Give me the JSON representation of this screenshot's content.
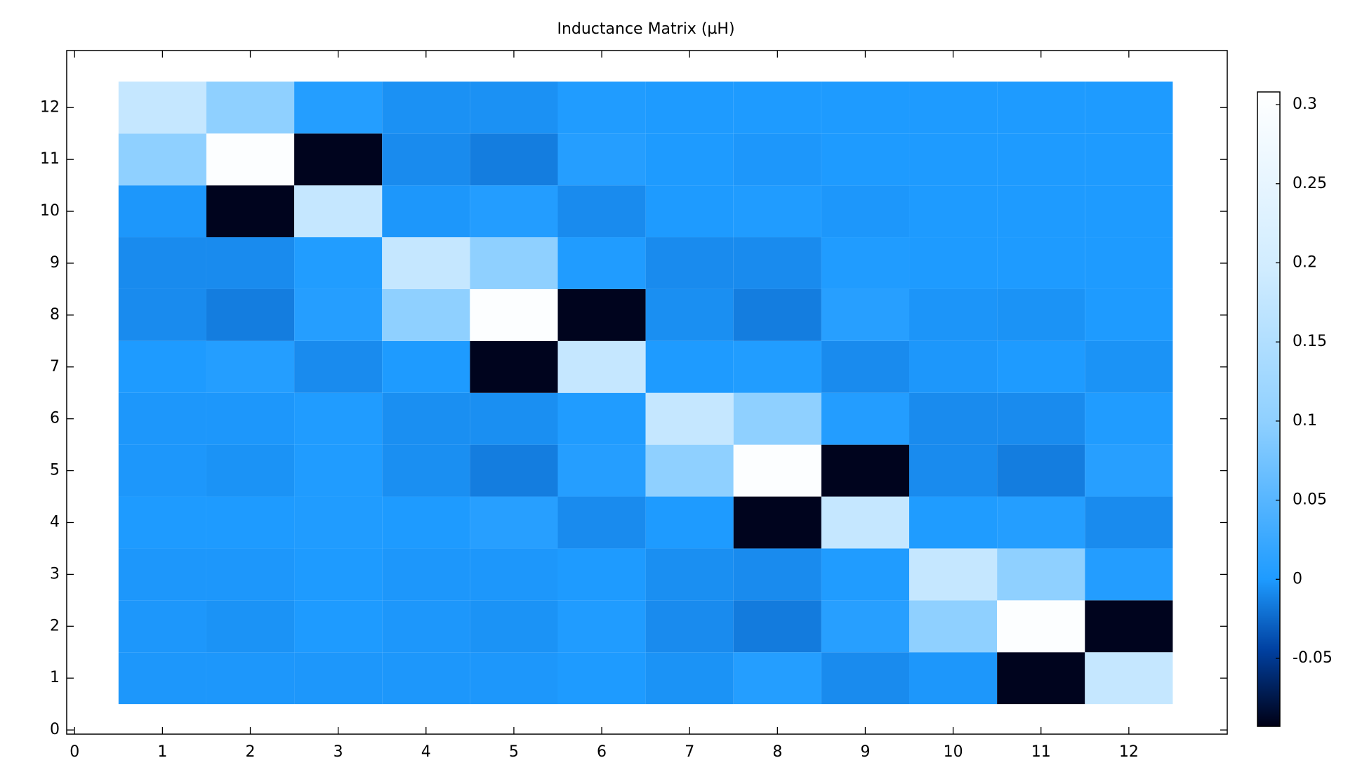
{
  "chart_data": {
    "type": "heatmap",
    "title": "Inductance Matrix (µH)",
    "x": [
      1,
      2,
      3,
      4,
      5,
      6,
      7,
      8,
      9,
      10,
      11,
      12
    ],
    "y": [
      1,
      2,
      3,
      4,
      5,
      6,
      7,
      8,
      9,
      10,
      11,
      12
    ],
    "z": [
      [
        -0.002,
        -0.002,
        -0.002,
        -0.002,
        -0.002,
        0,
        -0.004,
        0.005,
        -0.008,
        -0.002,
        -0.09,
        0.18
      ],
      [
        -0.002,
        -0.004,
        0,
        -0.002,
        -0.004,
        0.002,
        -0.008,
        -0.016,
        0.008,
        0.1,
        0.3,
        -0.09
      ],
      [
        -0.002,
        -0.002,
        0,
        -0.002,
        -0.002,
        0,
        -0.006,
        -0.008,
        0.002,
        0.18,
        0.1,
        0.004
      ],
      [
        0,
        0,
        0.002,
        0,
        0.008,
        -0.008,
        0,
        -0.09,
        0.18,
        0.001,
        0.005,
        -0.008
      ],
      [
        -0.002,
        -0.004,
        0.002,
        -0.006,
        -0.015,
        0.006,
        0.1,
        0.3,
        -0.09,
        -0.008,
        -0.015,
        0.008
      ],
      [
        -0.002,
        -0.002,
        0.002,
        -0.006,
        -0.006,
        0.002,
        0.18,
        0.1,
        0.004,
        -0.008,
        -0.008,
        0.002
      ],
      [
        0,
        0.005,
        -0.008,
        0,
        -0.09,
        0.18,
        0,
        0.003,
        -0.008,
        -0.002,
        0,
        -0.004
      ],
      [
        -0.008,
        -0.015,
        0.006,
        0.1,
        0.3,
        -0.09,
        -0.006,
        -0.015,
        0.008,
        -0.003,
        -0.004,
        0
      ],
      [
        -0.008,
        -0.008,
        0.003,
        0.18,
        0.1,
        0.002,
        -0.008,
        -0.008,
        0.002,
        0,
        0,
        0
      ],
      [
        -0.002,
        -0.09,
        0.18,
        -0.002,
        0.004,
        -0.008,
        0,
        0.002,
        -0.002,
        0,
        0,
        0
      ],
      [
        0.1,
        0.3,
        -0.09,
        -0.008,
        -0.015,
        0.006,
        0,
        -0.002,
        0,
        0,
        0,
        0
      ],
      [
        0.18,
        0.1,
        0.005,
        -0.005,
        -0.005,
        0.002,
        0,
        0,
        0,
        0,
        0,
        0
      ]
    ],
    "xlim": [
      -0.09,
      13.12
    ],
    "ylim": [
      -0.08,
      13.1
    ],
    "xticks": [
      0,
      1,
      2,
      3,
      4,
      5,
      6,
      7,
      8,
      9,
      10,
      11,
      12
    ],
    "yticks": [
      0,
      1,
      2,
      3,
      4,
      5,
      6,
      7,
      8,
      9,
      10,
      11,
      12
    ],
    "clim": [
      -0.093,
      0.308
    ],
    "cticks": [
      -0.05,
      0,
      0.05,
      0.1,
      0.15,
      0.2,
      0.25,
      0.3
    ]
  }
}
